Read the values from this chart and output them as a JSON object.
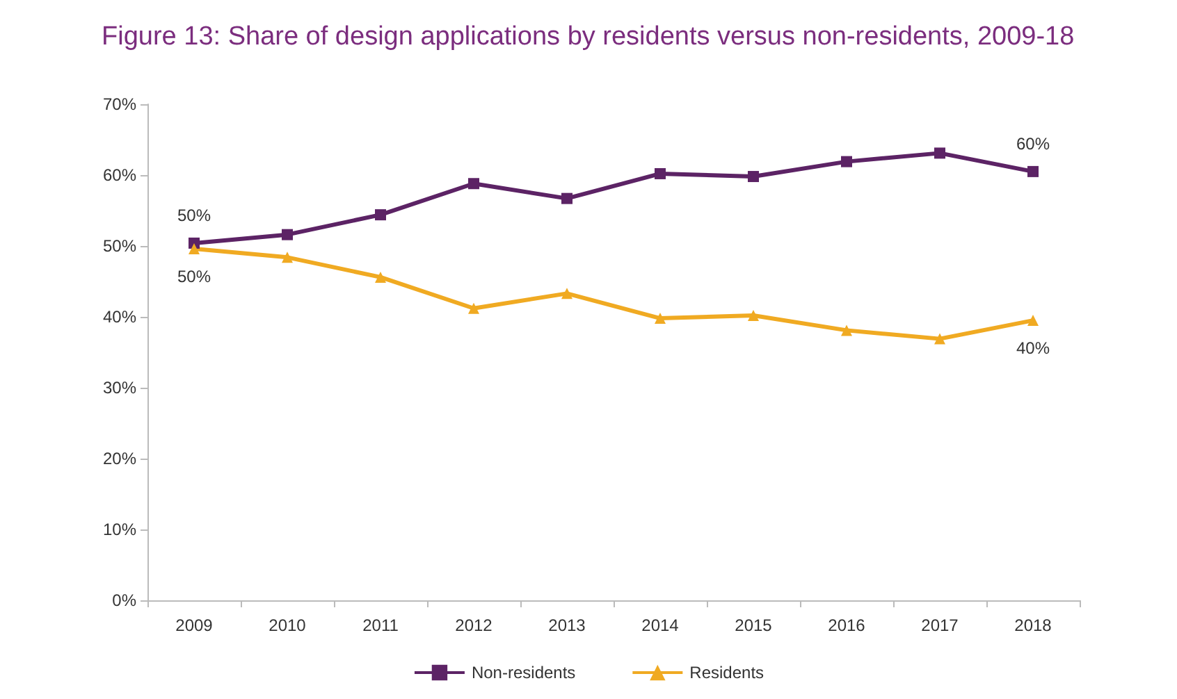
{
  "chart_data": {
    "type": "line",
    "title": "Figure 13: Share of design applications by residents versus non-residents, 2009-18",
    "categories": [
      "2009",
      "2010",
      "2011",
      "2012",
      "2013",
      "2014",
      "2015",
      "2016",
      "2017",
      "2018"
    ],
    "series": [
      {
        "name": "Non-residents",
        "color": "#5c2365",
        "marker": "square",
        "values": [
          50.4,
          51.6,
          54.4,
          58.8,
          56.7,
          60.2,
          59.8,
          61.9,
          63.1,
          60.5
        ],
        "value_labels": [
          "50%",
          null,
          null,
          null,
          null,
          null,
          null,
          null,
          null,
          "60%"
        ]
      },
      {
        "name": "Residents",
        "color": "#f0aa22",
        "marker": "triangle",
        "values": [
          49.6,
          48.4,
          45.6,
          41.2,
          43.3,
          39.8,
          40.2,
          38.1,
          36.9,
          39.5
        ],
        "value_labels": [
          "50%",
          null,
          null,
          null,
          null,
          null,
          null,
          null,
          null,
          "40%"
        ]
      }
    ],
    "ylim": [
      0,
      70
    ],
    "yticks": [
      {
        "value": 0,
        "label": "0%"
      },
      {
        "value": 10,
        "label": "10%"
      },
      {
        "value": 20,
        "label": "20%"
      },
      {
        "value": 30,
        "label": "30%"
      },
      {
        "value": 40,
        "label": "40%"
      },
      {
        "value": 50,
        "label": "50%"
      },
      {
        "value": 60,
        "label": "60%"
      },
      {
        "value": 70,
        "label": "70%"
      }
    ],
    "grid": false,
    "legend": "bottom",
    "line_style": "solid"
  }
}
